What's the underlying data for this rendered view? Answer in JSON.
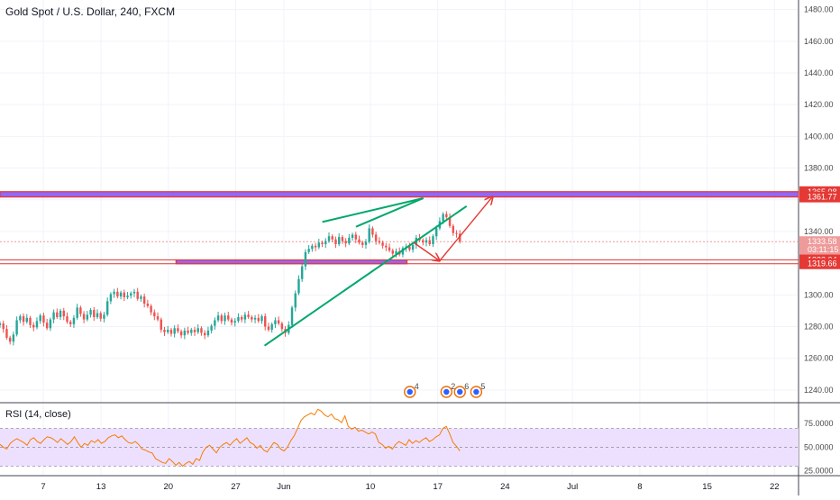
{
  "title": "Gold Spot / U.S. Dollar, 240, FXCM",
  "rsi_title": "RSI (14, close)",
  "colors": {
    "up": "#26a69a",
    "down": "#ef5350",
    "zone_fill": "#7c4dff",
    "zone_border": "#e53935",
    "trend": "#00a86b",
    "arrow": "#e53935",
    "rsi_line": "#f57c00",
    "rsi_band": "#ede0ff"
  },
  "chart_data": [
    {
      "type": "candlestick",
      "title": "Gold Spot / U.S. Dollar, 240, FXCM",
      "y_ticks": [
        "1480.00",
        "1460.00",
        "1440.00",
        "1420.00",
        "1400.00",
        "1380.00",
        "1360.00",
        "1340.00",
        "1320.00",
        "1300.00",
        "1280.00",
        "1260.00",
        "1240.00"
      ],
      "ylim": [
        1232,
        1486
      ],
      "x_ticks": [
        {
          "label": "7",
          "day": 7
        },
        {
          "label": "13",
          "day": 13
        },
        {
          "label": "20",
          "day": 20
        },
        {
          "label": "27",
          "day": 27
        },
        {
          "label": "Jun",
          "day": 32
        },
        {
          "label": "10",
          "day": 41
        },
        {
          "label": "17",
          "day": 48
        },
        {
          "label": "24",
          "day": 55
        },
        {
          "label": "Jul",
          "day": 62
        },
        {
          "label": "8",
          "day": 69
        },
        {
          "label": "15",
          "day": 76
        },
        {
          "label": "22",
          "day": 83
        }
      ],
      "xlim": [
        2.5,
        85.5
      ],
      "price_labels": [
        {
          "text": "1365.08",
          "value": 1365.08,
          "color": "#e53935"
        },
        {
          "text": "1361.77",
          "value": 1361.77,
          "color": "#e53935"
        },
        {
          "text": "1333.58",
          "value": 1333.58,
          "color": "#ef9a9a"
        },
        {
          "text": "03:11:15",
          "value": 1328.5,
          "color": "#ef9a9a"
        },
        {
          "text": "1322.04",
          "value": 1322.04,
          "color": "#e53935"
        },
        {
          "text": "1319.66",
          "value": 1319.66,
          "color": "#e53935"
        }
      ],
      "last_price": 1333.58,
      "closes": [
        1282.0,
        1278.5,
        1273.0,
        1270.5,
        1275.0,
        1284.0,
        1286.5,
        1283.0,
        1285.5,
        1281.0,
        1279.5,
        1283.5,
        1287.0,
        1282.5,
        1279.0,
        1284.5,
        1289.0,
        1286.0,
        1290.0,
        1286.5,
        1283.0,
        1281.5,
        1285.5,
        1292.0,
        1288.0,
        1284.5,
        1287.5,
        1290.5,
        1286.0,
        1288.5,
        1285.0,
        1287.5,
        1296.0,
        1300.5,
        1302.0,
        1299.0,
        1301.5,
        1298.5,
        1299.5,
        1301.0,
        1302.0,
        1297.5,
        1299.0,
        1294.5,
        1293.0,
        1289.0,
        1286.5,
        1284.5,
        1278.0,
        1276.5,
        1278.0,
        1275.5,
        1279.0,
        1277.0,
        1274.5,
        1277.5,
        1276.0,
        1278.0,
        1276.5,
        1279.0,
        1276.0,
        1274.5,
        1277.5,
        1280.5,
        1284.0,
        1287.0,
        1283.5,
        1287.0,
        1284.5,
        1282.5,
        1283.5,
        1286.0,
        1284.5,
        1287.5,
        1286.0,
        1284.5,
        1285.5,
        1283.5,
        1286.5,
        1280.0,
        1278.0,
        1281.5,
        1284.0,
        1282.0,
        1278.5,
        1276.0,
        1281.0,
        1292.0,
        1301.0,
        1310.0,
        1318.0,
        1327.0,
        1329.0,
        1331.0,
        1330.0,
        1333.0,
        1332.0,
        1334.0,
        1337.0,
        1335.0,
        1332.0,
        1336.5,
        1334.0,
        1332.5,
        1336.0,
        1338.0,
        1335.0,
        1333.0,
        1331.5,
        1333.5,
        1342.0,
        1338.0,
        1334.0,
        1333.0,
        1331.0,
        1330.0,
        1328.0,
        1326.0,
        1327.5,
        1325.5,
        1329.5,
        1330.5,
        1328.5,
        1331.5,
        1336.0,
        1334.5,
        1333.0,
        1334.5,
        1332.0,
        1337.0,
        1342.0,
        1346.5,
        1351.0,
        1349.0,
        1343.5,
        1339.0,
        1338.5,
        1333.58
      ],
      "trendlines": [
        {
          "from": [
            30.0,
            1268.0
          ],
          "to": [
            51.0,
            1356.0
          ]
        },
        {
          "from": [
            39.5,
            1343.0
          ],
          "to": [
            46.5,
            1361.0
          ]
        },
        {
          "from": [
            36.0,
            1346.0
          ],
          "to": [
            46.5,
            1361.0
          ]
        }
      ],
      "zones": [
        {
          "from_day": 2.5,
          "to_day": 85.5,
          "top": 1365.08,
          "bottom": 1361.77
        },
        {
          "from_day": 20.8,
          "to_day": 44.8,
          "top": 1322.04,
          "bottom": 1319.66
        }
      ],
      "horizontal_lines": [
        1322.04,
        1319.66,
        1333.58
      ],
      "arrows": [
        {
          "from": [
            45.5,
            1333.0
          ],
          "to": [
            48.2,
            1321.5
          ]
        },
        {
          "from": [
            48.2,
            1321.5
          ],
          "to": [
            53.7,
            1362.0
          ]
        }
      ],
      "events": [
        {
          "day": 45.1,
          "count": "4"
        },
        {
          "day": 48.9,
          "count": "2"
        },
        {
          "day": 50.3,
          "count": "6"
        },
        {
          "day": 52.0,
          "count": "5"
        }
      ]
    },
    {
      "type": "line",
      "title": "RSI (14, close)",
      "y_ticks": [
        "75.0000",
        "50.0000",
        "25.0000"
      ],
      "ylim": [
        20,
        96
      ],
      "band": [
        30,
        70
      ],
      "values": [
        53,
        50,
        48,
        54,
        57,
        59,
        57,
        55,
        52,
        58,
        60,
        56,
        54,
        58,
        61,
        60,
        58,
        55,
        59,
        56,
        53,
        56,
        61,
        55,
        50,
        54,
        52,
        57,
        55,
        58,
        54,
        56,
        60,
        62,
        63,
        60,
        62,
        58,
        55,
        54,
        56,
        53,
        48,
        47,
        45,
        44,
        38,
        36,
        34,
        33,
        38,
        35,
        31,
        34,
        30,
        33,
        35,
        32,
        38,
        36,
        45,
        50,
        52,
        48,
        44,
        50,
        53,
        55,
        52,
        56,
        59,
        54,
        57,
        60,
        55,
        53,
        49,
        52,
        47,
        45,
        50,
        55,
        53,
        48,
        46,
        50,
        57,
        62,
        70,
        78,
        82,
        84,
        86,
        84,
        90,
        88,
        84,
        82,
        85,
        80,
        79,
        76,
        83,
        72,
        69,
        71,
        67,
        68,
        66,
        64,
        66,
        64,
        55,
        53,
        49,
        51,
        48,
        53,
        56,
        54,
        52,
        58,
        54,
        57,
        55,
        58,
        60,
        56,
        58,
        61,
        63,
        70,
        72,
        64,
        55,
        51,
        46
      ],
      "line_day_range": [
        2.5,
        50.3
      ]
    }
  ]
}
